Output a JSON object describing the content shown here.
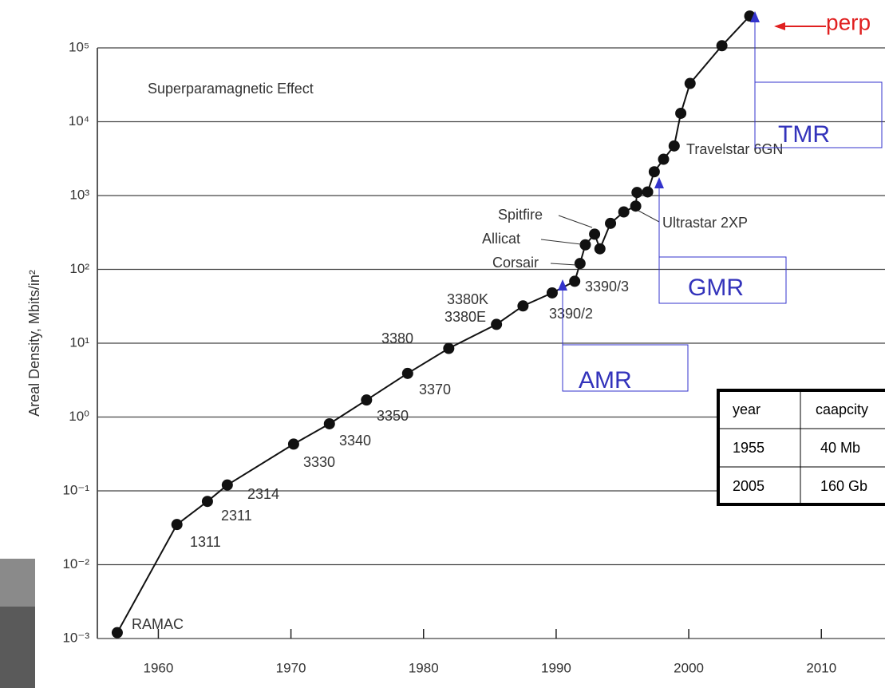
{
  "chart_data": {
    "type": "line",
    "y_label": "Areal Density, Mbits/in²",
    "annotation": "Superparamagnetic Effect",
    "x": [
      1956.9,
      1961.4,
      1963.7,
      1965.2,
      1970.2,
      1972.9,
      1975.7,
      1978.8,
      1981.9,
      1985.5,
      1987.5,
      1989.7,
      1991.4,
      1991.8,
      1992.2,
      1992.9,
      1993.3,
      1994.1,
      1995.1,
      1996.0,
      1996.1,
      1996.9,
      1997.4,
      1998.1,
      1998.9,
      1999.4,
      2000.1,
      2002.5,
      2004.6
    ],
    "values": [
      0.0012,
      0.035,
      0.072,
      0.12,
      0.43,
      0.81,
      1.7,
      3.9,
      8.5,
      18,
      32,
      48,
      69,
      120,
      215,
      300,
      190,
      420,
      600,
      720,
      1100,
      1120,
      2100,
      3100,
      4700,
      13000,
      33000,
      107000,
      270000
    ],
    "point_labels": [
      "RAMAC",
      "1311",
      "2311",
      "2314",
      "3330",
      "3340",
      "3350",
      "3370",
      "3380",
      "3380E",
      "3380K",
      "3390/2",
      "3390/3",
      "Corsair",
      "Allicat",
      "Spitfire",
      null,
      null,
      null,
      "Ultrastar 2XP",
      null,
      null,
      null,
      null,
      "Travelstar 6GN",
      null,
      null,
      null,
      null
    ],
    "color": "#111111",
    "xlim": [
      1955.4,
      2014.8
    ],
    "xticks": [
      1960,
      1970,
      1980,
      1990,
      2000,
      2010
    ],
    "ylim": [
      0.001,
      100000
    ],
    "log_y": true,
    "yticks": [
      {
        "value": 0.001,
        "label": "10⁻³"
      },
      {
        "value": 0.01,
        "label": "10⁻²"
      },
      {
        "value": 0.1,
        "label": "10⁻¹"
      },
      {
        "value": 1,
        "label": "10⁰"
      },
      {
        "value": 10,
        "label": "10¹"
      },
      {
        "value": 100,
        "label": "10²"
      },
      {
        "value": 1000,
        "label": "10³"
      },
      {
        "value": 10000,
        "label": "10⁴"
      },
      {
        "value": 100000,
        "label": "10⁵"
      }
    ],
    "grid": true
  },
  "callouts": {
    "amr": "AMR",
    "gmr": "GMR",
    "tmr": "TMR",
    "perp": "perp"
  },
  "table": {
    "header": [
      "year",
      "caapcity"
    ],
    "rows": [
      [
        "1955",
        "40 Mb"
      ],
      [
        "2005",
        "160 Gb"
      ]
    ]
  }
}
